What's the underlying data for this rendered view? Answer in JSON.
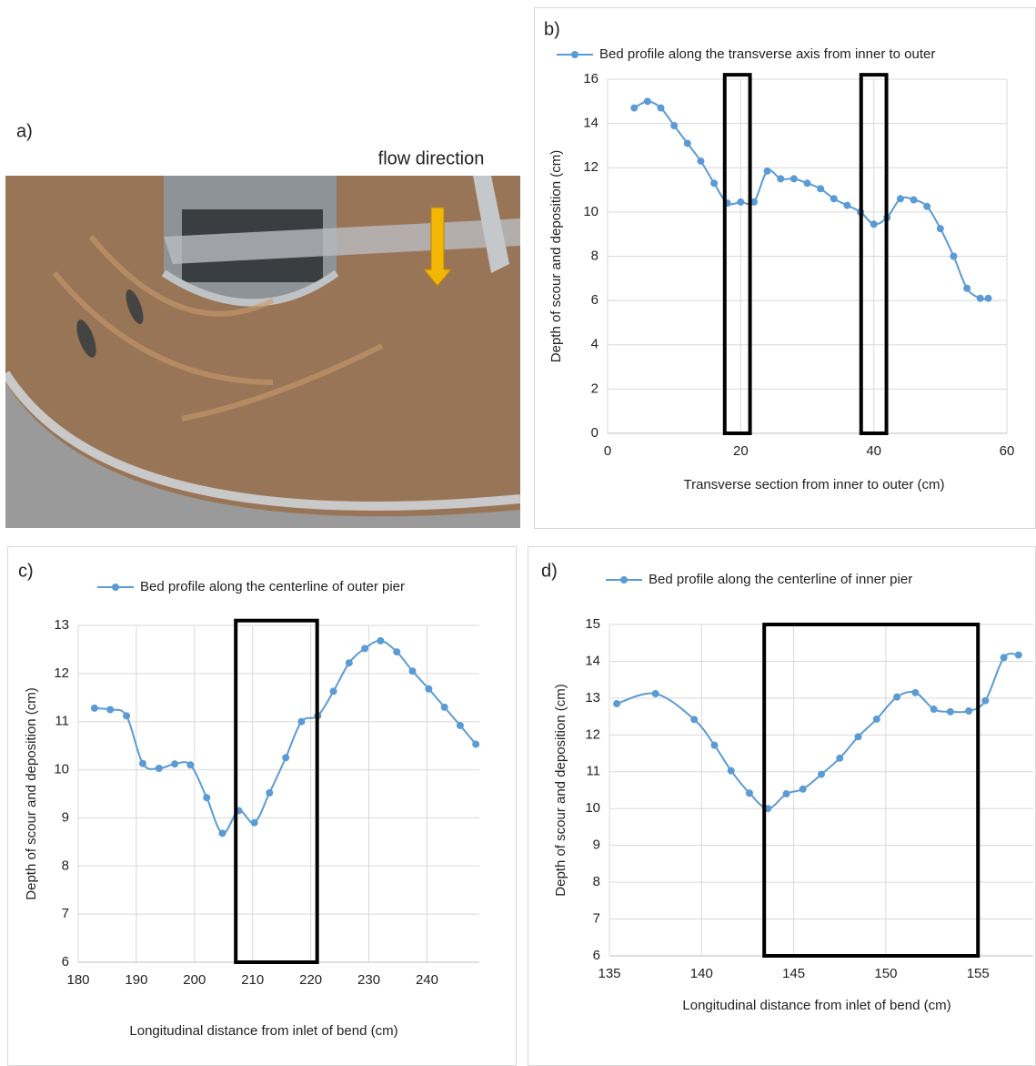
{
  "photo_panel": {
    "label": "a)",
    "annotation": "flow direction"
  },
  "chart_data": [
    {
      "type": "line",
      "panel_label": "b)",
      "smooth": true,
      "grid": true,
      "xlabel": "Transverse section from inner to outer (cm)",
      "ylabel": "Depth of scour and deposition (cm)",
      "xlim": [
        0,
        60
      ],
      "xticks": [
        0,
        20,
        40,
        60
      ],
      "ylim": [
        0,
        16
      ],
      "yticks": [
        0,
        2,
        4,
        6,
        8,
        10,
        12,
        14,
        16
      ],
      "x": [
        4,
        6,
        8,
        10,
        12,
        14,
        16,
        18,
        20,
        22,
        24,
        26,
        28,
        30,
        32,
        34,
        36,
        38,
        40,
        42,
        44,
        46,
        48,
        50,
        52,
        54,
        56,
        57.2
      ],
      "series": [
        {
          "name": "Bed profile along the transverse axis from inner to outer",
          "color": "#5b9bd5",
          "values": [
            14.7,
            15.0,
            14.7,
            13.9,
            13.1,
            12.3,
            11.3,
            10.4,
            10.45,
            10.45,
            11.85,
            11.5,
            11.5,
            11.3,
            11.05,
            10.6,
            10.3,
            10.0,
            9.45,
            9.75,
            10.6,
            10.55,
            10.25,
            9.25,
            8.0,
            6.55,
            6.1,
            6.1
          ]
        }
      ],
      "boxes": [
        {
          "x": [
            17.6,
            21.4
          ],
          "y": [
            0,
            16.2
          ]
        },
        {
          "x": [
            38.1,
            41.9
          ],
          "y": [
            0,
            16.2
          ]
        }
      ]
    },
    {
      "type": "line",
      "panel_label": "c)",
      "smooth": true,
      "grid": true,
      "xlabel": "Longitudinal distance from inlet of bend (cm)",
      "ylabel": "Depth of scour and deposition (cm)",
      "xlim": [
        180,
        249
      ],
      "xticks": [
        180,
        190,
        200,
        210,
        220,
        230,
        240
      ],
      "ylim": [
        6,
        13
      ],
      "yticks": [
        6,
        7,
        8,
        9,
        10,
        11,
        12,
        13
      ],
      "x": [
        182.8,
        185.5,
        188.3,
        191.1,
        193.9,
        196.6,
        199.3,
        202.1,
        204.8,
        207.6,
        210.3,
        212.9,
        215.7,
        218.4,
        221.2,
        223.9,
        226.6,
        229.3,
        232.0,
        234.8,
        237.5,
        240.3,
        243.0,
        245.7,
        248.4
      ],
      "series": [
        {
          "name": "Bed profile along the centerline of outer pier",
          "color": "#5b9bd5",
          "values": [
            11.28,
            11.25,
            11.12,
            10.13,
            10.03,
            10.12,
            10.1,
            9.42,
            8.68,
            9.15,
            8.9,
            9.52,
            10.25,
            11.0,
            11.12,
            11.63,
            12.22,
            12.52,
            12.68,
            12.45,
            12.05,
            11.68,
            11.3,
            10.92,
            10.53
          ]
        }
      ],
      "boxes": [
        {
          "x": [
            207.1,
            221.1
          ],
          "y": [
            6,
            13.1
          ]
        }
      ]
    },
    {
      "type": "line",
      "panel_label": "d)",
      "smooth": true,
      "grid": true,
      "xlabel": "Longitudinal distance from inlet of bend (cm)",
      "ylabel": "Depth of scour and deposition (cm)",
      "xlim": [
        135,
        158
      ],
      "xticks": [
        135,
        140,
        145,
        150,
        155
      ],
      "ylim": [
        6,
        15
      ],
      "yticks": [
        6,
        7,
        8,
        9,
        10,
        11,
        12,
        13,
        14,
        15
      ],
      "x": [
        135.4,
        137.5,
        139.6,
        140.7,
        141.6,
        142.6,
        143.6,
        144.6,
        145.5,
        146.5,
        147.5,
        148.5,
        149.5,
        150.6,
        151.6,
        152.6,
        153.5,
        154.5,
        155.4,
        156.4,
        157.2
      ],
      "series": [
        {
          "name": "Bed profile along the centerline of inner pier",
          "color": "#5b9bd5",
          "values": [
            12.85,
            13.12,
            12.42,
            11.72,
            11.03,
            10.42,
            10.0,
            10.4,
            10.53,
            10.93,
            11.37,
            11.95,
            12.43,
            13.03,
            13.15,
            12.7,
            12.63,
            12.65,
            12.93,
            14.1,
            14.17
          ]
        }
      ],
      "boxes": [
        {
          "x": [
            143.4,
            155.0
          ],
          "y": [
            6,
            15
          ]
        }
      ]
    }
  ]
}
